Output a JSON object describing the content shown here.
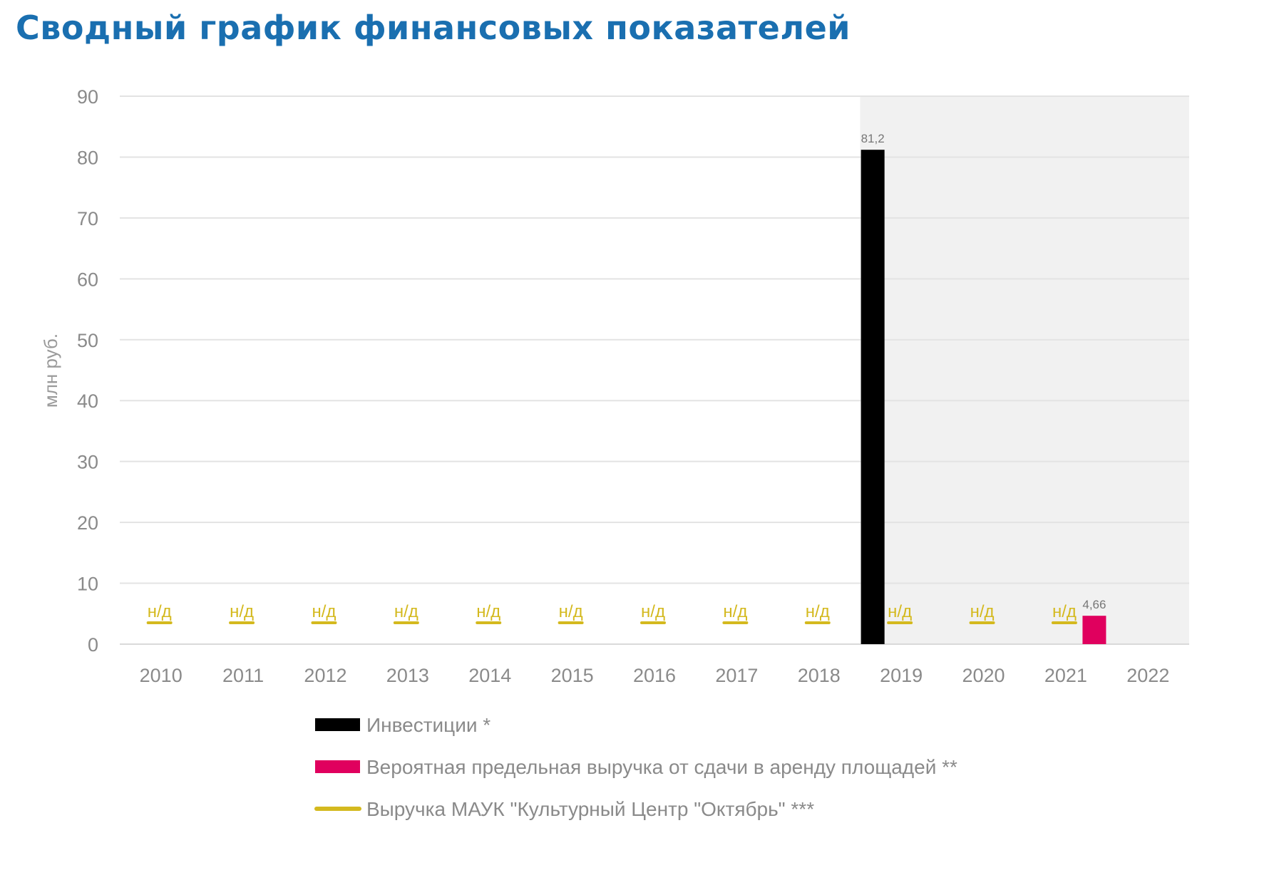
{
  "page_title": "Сводный график финансовых показателей",
  "colors": {
    "title": "#1a6fb0",
    "investments": "#000000",
    "rent_revenue": "#e0005e",
    "revenue_line": "#d4b91e",
    "shaded_region": "#f1f1f1",
    "grid": "#e3e3e3"
  },
  "chart_data": {
    "type": "bar",
    "title": "Сводный график финансовых показателей",
    "ylabel": "млн руб.",
    "xlabel": "",
    "ylim": [
      0,
      90
    ],
    "yticks": [
      0,
      10,
      20,
      30,
      40,
      50,
      60,
      70,
      80,
      90
    ],
    "categories": [
      "2010",
      "2011",
      "2012",
      "2013",
      "2014",
      "2015",
      "2016",
      "2017",
      "2018",
      "2019",
      "2020",
      "2021",
      "2022"
    ],
    "shaded_from": "2019",
    "grid": true,
    "legend_position": "bottom",
    "series": [
      {
        "name": "Инвестиции *",
        "kind": "bar",
        "color": "#000000",
        "values": [
          null,
          null,
          null,
          null,
          null,
          null,
          null,
          null,
          null,
          81.2,
          null,
          null,
          null
        ],
        "labels": [
          "",
          "",
          "",
          "",
          "",
          "",
          "",
          "",
          "",
          "81,2",
          "",
          "",
          ""
        ]
      },
      {
        "name": "Вероятная предельная выручка от сдачи в аренду площадей **",
        "kind": "bar",
        "color": "#e0005e",
        "values": [
          null,
          null,
          null,
          null,
          null,
          null,
          null,
          null,
          null,
          null,
          null,
          4.66,
          null
        ],
        "labels": [
          "",
          "",
          "",
          "",
          "",
          "",
          "",
          "",
          "",
          "",
          "",
          "4,66",
          ""
        ]
      },
      {
        "name": "Выручка МАУК \"Культурный Центр \"Октябрь\" ***",
        "kind": "line",
        "color": "#d4b91e",
        "values": [
          null,
          null,
          null,
          null,
          null,
          null,
          null,
          null,
          null,
          null,
          null,
          null,
          null
        ],
        "na_labels": [
          "н/д",
          "н/д",
          "н/д",
          "н/д",
          "н/д",
          "н/д",
          "н/д",
          "н/д",
          "н/д",
          "н/д",
          "н/д",
          "н/д",
          ""
        ]
      }
    ]
  }
}
